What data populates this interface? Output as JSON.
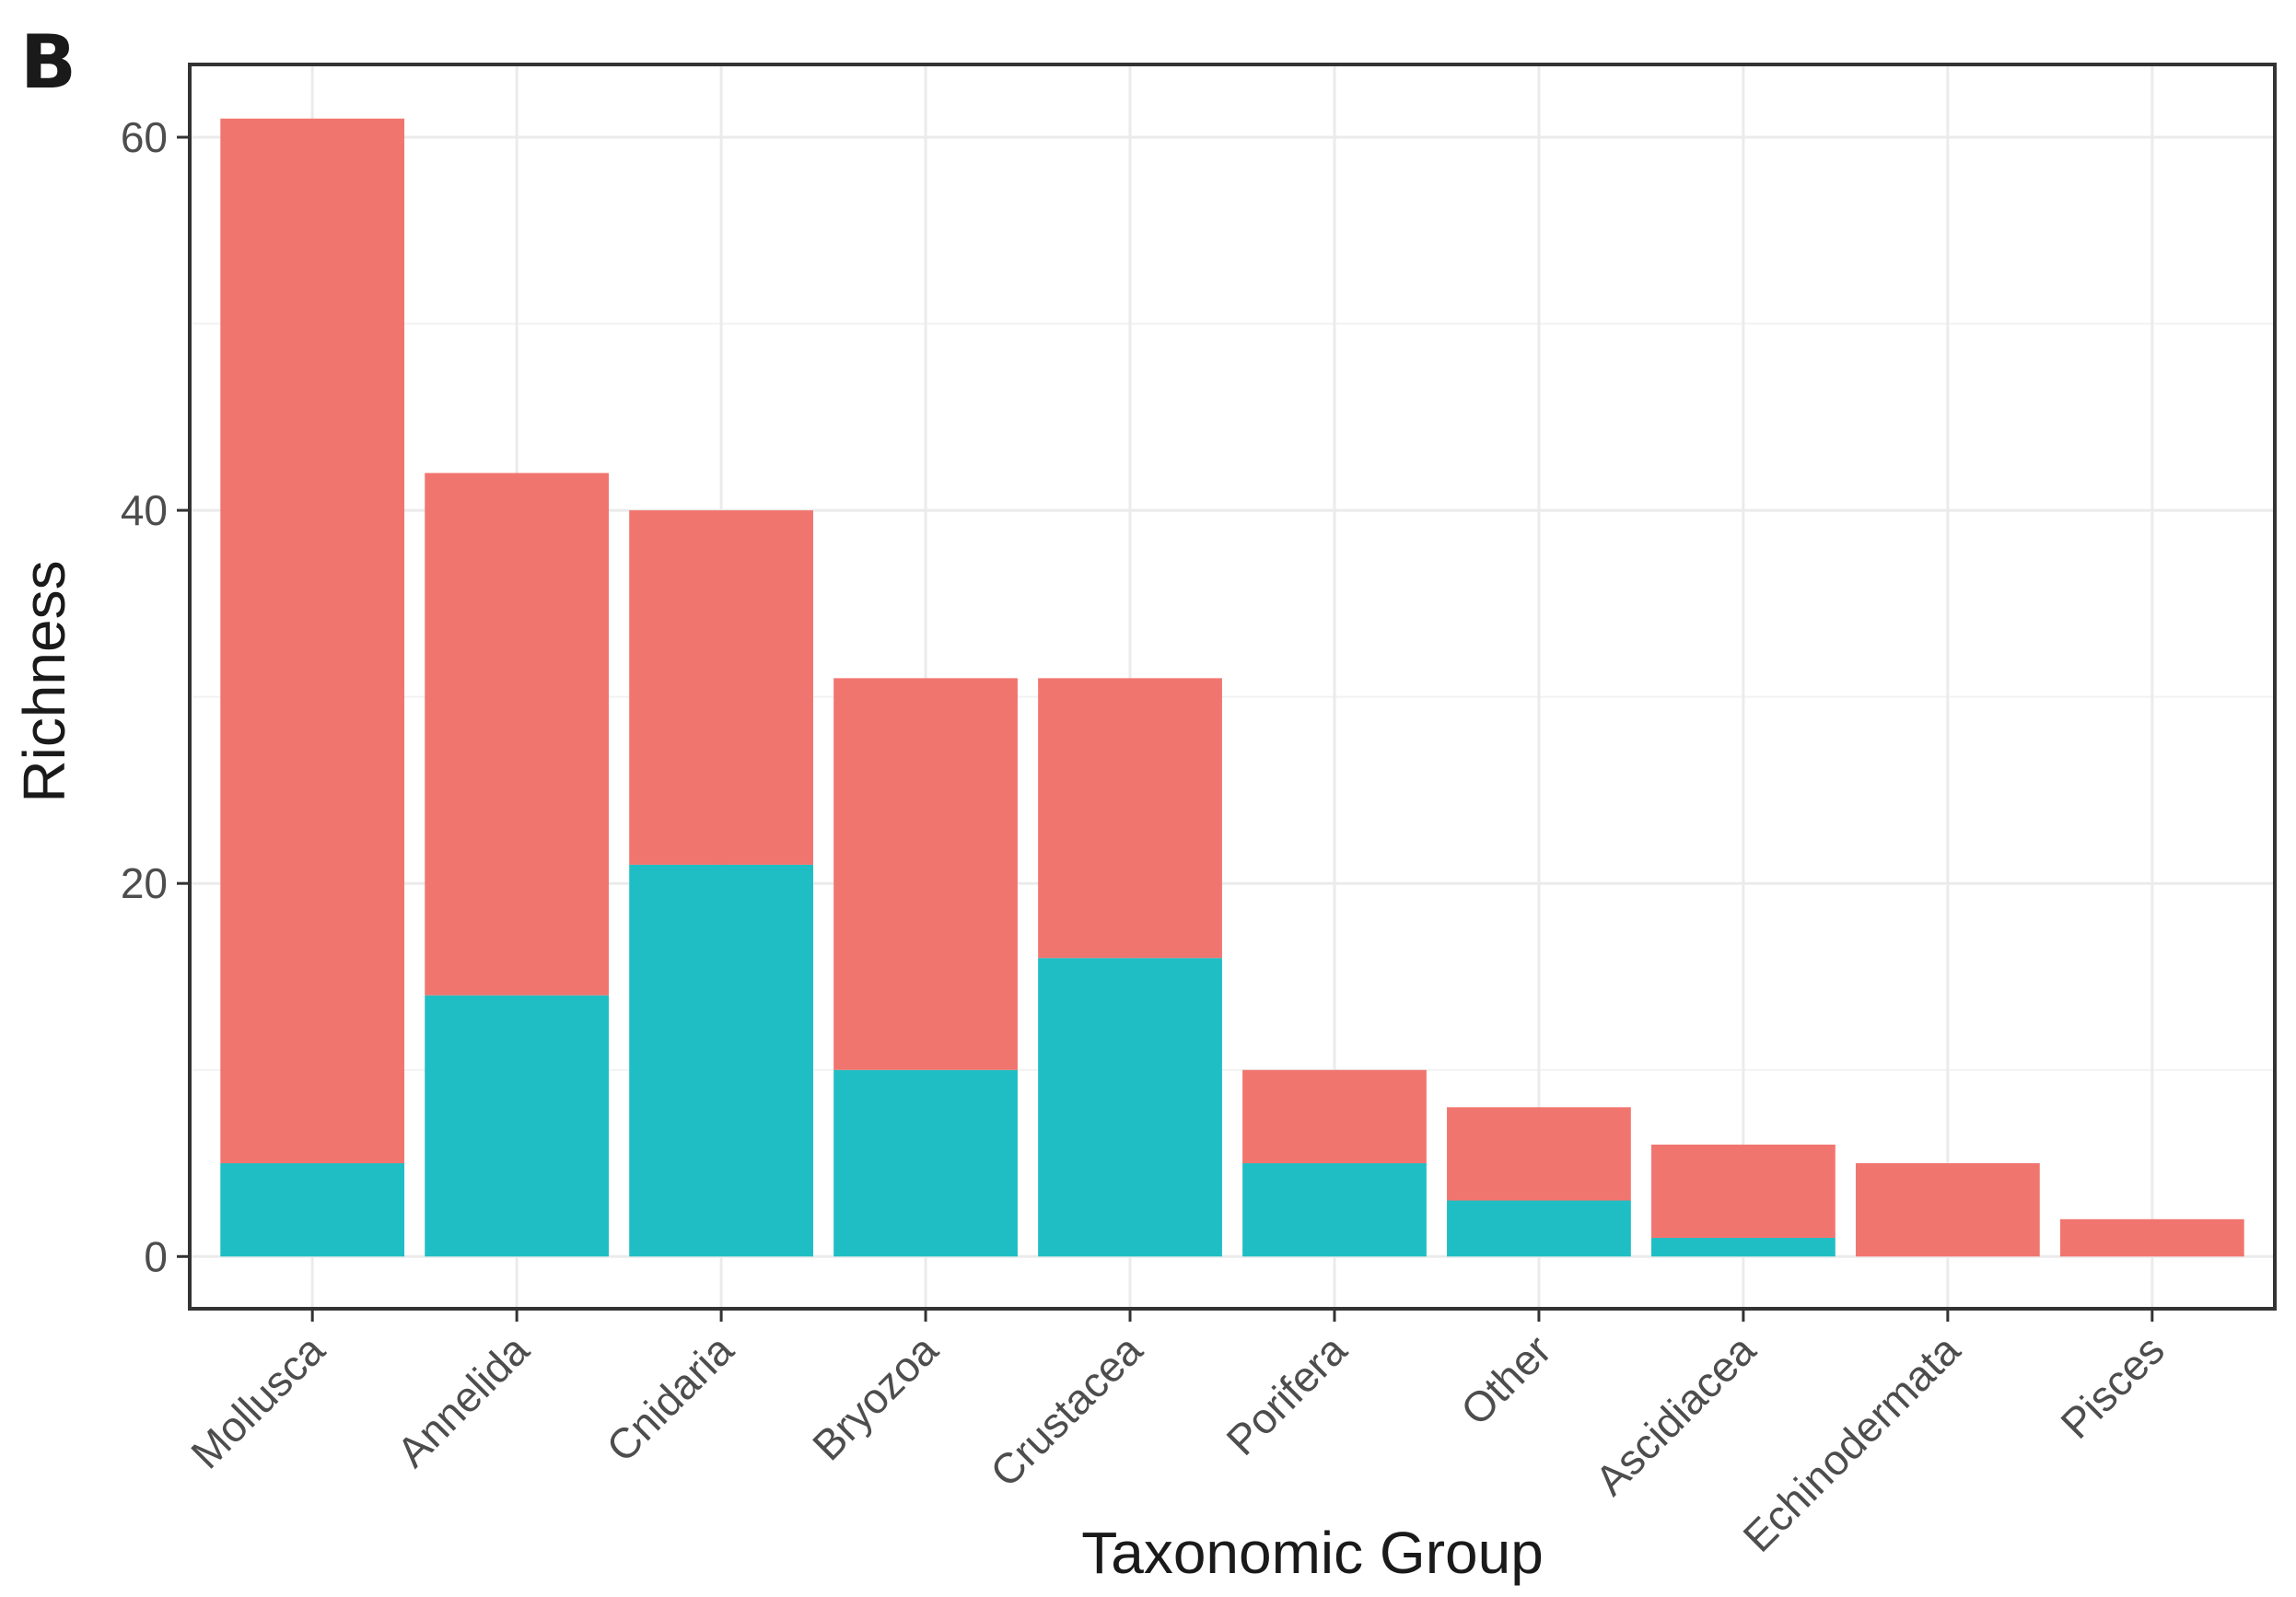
{
  "panel_label": "B",
  "chart_data": {
    "type": "bar",
    "stacked": true,
    "categories": [
      "Mollusca",
      "Annelida",
      "Cnidaria",
      "Bryozoa",
      "Crustacea",
      "Porifera",
      "Other",
      "Ascidiacea",
      "Echinodermata",
      "Pisces"
    ],
    "series": [
      {
        "color": "#1fbec4",
        "values": [
          5,
          14,
          21,
          10,
          16,
          5,
          3,
          1,
          0,
          0
        ]
      },
      {
        "color": "#f1756f",
        "values": [
          56,
          28,
          19,
          21,
          15,
          5,
          5,
          5,
          5,
          2
        ]
      }
    ],
    "xlabel": "Taxonomic Group",
    "ylabel": "Richness",
    "ylim": [
      -2.8,
      63.9
    ],
    "yticks": [
      0,
      20,
      40,
      60
    ],
    "grid": true,
    "legend": "none"
  }
}
